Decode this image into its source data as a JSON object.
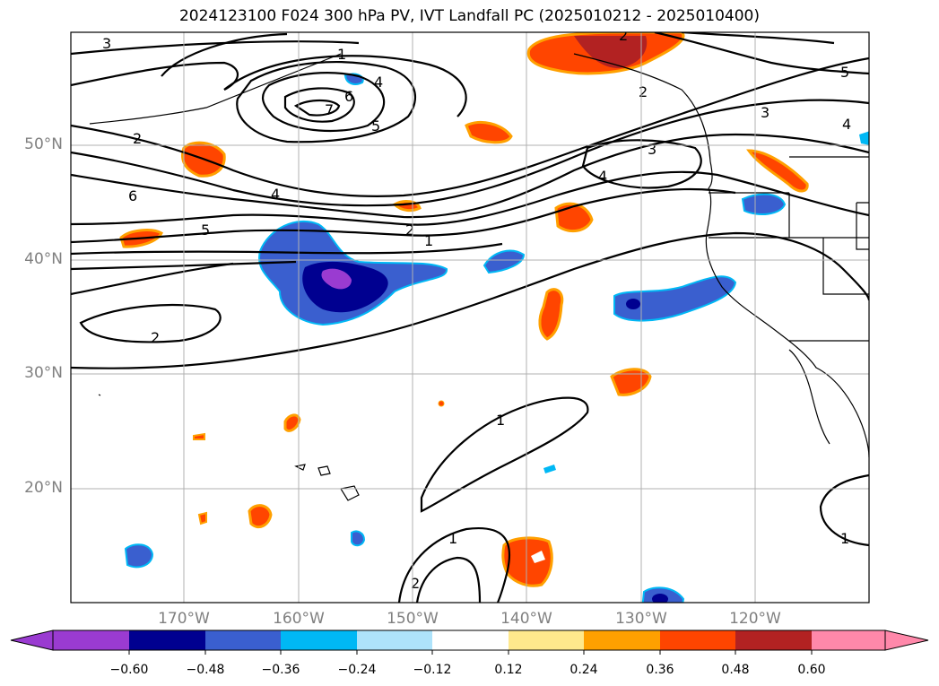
{
  "title": "2024123100 F024 300 hPa PV, IVT Landfall PC (2025010212 - 2025010400)",
  "latitude_labels": [
    "50°N",
    "40°N",
    "30°N",
    "20°N"
  ],
  "longitude_labels": [
    "170°W",
    "160°W",
    "150°W",
    "140°W",
    "130°W",
    "120°W"
  ],
  "colorbar": {
    "ticks": [
      "−0.60",
      "−0.48",
      "−0.36",
      "−0.24",
      "−0.12",
      "0.12",
      "0.24",
      "0.36",
      "0.48",
      "0.60"
    ],
    "colors": [
      "#9a3bd1",
      "#000090",
      "#3a5fcf",
      "#00b8f5",
      "#aee3fb",
      "#ffffff",
      "#ffe88c",
      "#ffa000",
      "#ff4500",
      "#b22222",
      "#ff88aa"
    ]
  },
  "contour_labels": [
    "3",
    "1",
    "4",
    "6",
    "7",
    "5",
    "2",
    "2",
    "6",
    "4",
    "5",
    "2",
    "1",
    "3",
    "4",
    "2",
    "3",
    "4",
    "5",
    "2",
    "1",
    "1",
    "2",
    "1"
  ]
}
